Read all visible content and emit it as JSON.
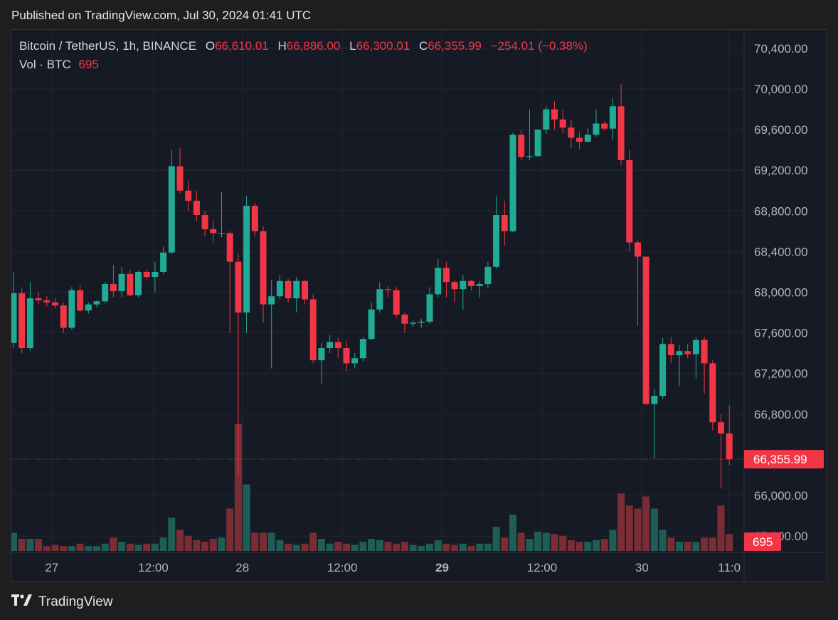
{
  "header": {
    "published": "Published on TradingView.com, Jul 30, 2024 01:41 UTC"
  },
  "legend": {
    "symbol": "Bitcoin / TetherUS, 1h, BINANCE",
    "o_label": "O",
    "o_value": "66,610.01",
    "h_label": "H",
    "h_value": "66,886.00",
    "l_label": "L",
    "l_value": "66,300.01",
    "c_label": "C",
    "c_value": "66,355.99",
    "change": "−254.01 (−0.38%)",
    "vol_label": "Vol · BTC",
    "vol_value": "695"
  },
  "footer": {
    "logo_icon": "tradingview-logo-icon",
    "brand": "TradingView"
  },
  "colors": {
    "up": "#22ab94",
    "down": "#f23645",
    "up_vol": "#1f5e55",
    "down_vol": "#7a2e34",
    "grid": "#232733"
  },
  "chart_data": {
    "type": "candlestick",
    "symbol": "BTCUSDT",
    "interval": "1h",
    "ylim": [
      65700,
      70600
    ],
    "y_ticks": [
      "70,400.00",
      "70,000.00",
      "69,600.00",
      "69,200.00",
      "68,800.00",
      "68,400.00",
      "68,000.00",
      "67,600.00",
      "67,200.00",
      "66,800.00",
      "66,000.00",
      "65,600.00"
    ],
    "x_ticks": [
      "27",
      "12:00",
      "28",
      "12:00",
      "29",
      "12:00",
      "30",
      "11:0"
    ],
    "x_tick_bar_index": [
      4.6,
      16.8,
      27.5,
      39.5,
      51.5,
      63.5,
      75.5,
      86
    ],
    "last_price": "66,355.99",
    "last_volume": "695",
    "candles": [
      {
        "o": 67500,
        "h": 68200,
        "l": 67450,
        "c": 67990,
        "v": 0.3
      },
      {
        "o": 67990,
        "h": 68050,
        "l": 67400,
        "c": 67450,
        "v": 0.2
      },
      {
        "o": 67450,
        "h": 68100,
        "l": 67420,
        "c": 67940,
        "v": 0.2
      },
      {
        "o": 67940,
        "h": 68000,
        "l": 67880,
        "c": 67920,
        "v": 0.2
      },
      {
        "o": 67920,
        "h": 67960,
        "l": 67860,
        "c": 67900,
        "v": 0.08
      },
      {
        "o": 67900,
        "h": 67940,
        "l": 67840,
        "c": 67870,
        "v": 0.1
      },
      {
        "o": 67870,
        "h": 67900,
        "l": 67600,
        "c": 67650,
        "v": 0.08
      },
      {
        "o": 67650,
        "h": 68050,
        "l": 67630,
        "c": 68020,
        "v": 0.08
      },
      {
        "o": 68020,
        "h": 68070,
        "l": 67800,
        "c": 67820,
        "v": 0.12
      },
      {
        "o": 67820,
        "h": 67900,
        "l": 67790,
        "c": 67880,
        "v": 0.08
      },
      {
        "o": 67880,
        "h": 67920,
        "l": 67850,
        "c": 67910,
        "v": 0.08
      },
      {
        "o": 67910,
        "h": 68100,
        "l": 67890,
        "c": 68080,
        "v": 0.12
      },
      {
        "o": 68080,
        "h": 68270,
        "l": 67950,
        "c": 68010,
        "v": 0.22
      },
      {
        "o": 68010,
        "h": 68250,
        "l": 67950,
        "c": 68180,
        "v": 0.15
      },
      {
        "o": 68180,
        "h": 68220,
        "l": 67960,
        "c": 67970,
        "v": 0.12
      },
      {
        "o": 67970,
        "h": 68210,
        "l": 67950,
        "c": 68200,
        "v": 0.1
      },
      {
        "o": 68200,
        "h": 68220,
        "l": 68120,
        "c": 68150,
        "v": 0.12
      },
      {
        "o": 68150,
        "h": 68300,
        "l": 68000,
        "c": 68200,
        "v": 0.12
      },
      {
        "o": 68200,
        "h": 68450,
        "l": 68180,
        "c": 68390,
        "v": 0.22
      },
      {
        "o": 68390,
        "h": 69400,
        "l": 68380,
        "c": 69240,
        "v": 0.55
      },
      {
        "o": 69240,
        "h": 69420,
        "l": 68970,
        "c": 69000,
        "v": 0.35
      },
      {
        "o": 69000,
        "h": 69100,
        "l": 68800,
        "c": 68900,
        "v": 0.25
      },
      {
        "o": 68900,
        "h": 69000,
        "l": 68700,
        "c": 68760,
        "v": 0.18
      },
      {
        "o": 68760,
        "h": 68800,
        "l": 68550,
        "c": 68620,
        "v": 0.15
      },
      {
        "o": 68620,
        "h": 68700,
        "l": 68480,
        "c": 68580,
        "v": 0.2
      },
      {
        "o": 68580,
        "h": 68990,
        "l": 68540,
        "c": 68580,
        "v": 0.22
      },
      {
        "o": 68580,
        "h": 68600,
        "l": 67600,
        "c": 68300,
        "v": 0.7
      },
      {
        "o": 68300,
        "h": 68380,
        "l": 66200,
        "c": 67800,
        "v": 2.1
      },
      {
        "o": 67800,
        "h": 68950,
        "l": 67600,
        "c": 68850,
        "v": 1.1
      },
      {
        "o": 68850,
        "h": 68880,
        "l": 68550,
        "c": 68600,
        "v": 0.3
      },
      {
        "o": 68600,
        "h": 68650,
        "l": 67700,
        "c": 67880,
        "v": 0.3
      },
      {
        "o": 67880,
        "h": 68120,
        "l": 67250,
        "c": 67960,
        "v": 0.3
      },
      {
        "o": 67960,
        "h": 68170,
        "l": 67930,
        "c": 68110,
        "v": 0.18
      },
      {
        "o": 68110,
        "h": 68130,
        "l": 67900,
        "c": 67940,
        "v": 0.12
      },
      {
        "o": 67940,
        "h": 68150,
        "l": 67800,
        "c": 68110,
        "v": 0.1
      },
      {
        "o": 68110,
        "h": 68120,
        "l": 67880,
        "c": 67930,
        "v": 0.12
      },
      {
        "o": 67930,
        "h": 67980,
        "l": 67300,
        "c": 67330,
        "v": 0.3
      },
      {
        "o": 67330,
        "h": 67500,
        "l": 67100,
        "c": 67450,
        "v": 0.2
      },
      {
        "o": 67450,
        "h": 67580,
        "l": 67400,
        "c": 67510,
        "v": 0.12
      },
      {
        "o": 67510,
        "h": 67550,
        "l": 67350,
        "c": 67450,
        "v": 0.15
      },
      {
        "o": 67450,
        "h": 67520,
        "l": 67220,
        "c": 67300,
        "v": 0.12
      },
      {
        "o": 67300,
        "h": 67400,
        "l": 67250,
        "c": 67350,
        "v": 0.1
      },
      {
        "o": 67350,
        "h": 67560,
        "l": 67320,
        "c": 67540,
        "v": 0.15
      },
      {
        "o": 67540,
        "h": 67900,
        "l": 67530,
        "c": 67830,
        "v": 0.2
      },
      {
        "o": 67830,
        "h": 68100,
        "l": 67800,
        "c": 68030,
        "v": 0.18
      },
      {
        "o": 68030,
        "h": 68060,
        "l": 67950,
        "c": 68020,
        "v": 0.15
      },
      {
        "o": 68020,
        "h": 68050,
        "l": 67750,
        "c": 67780,
        "v": 0.12
      },
      {
        "o": 67780,
        "h": 67800,
        "l": 67600,
        "c": 67690,
        "v": 0.15
      },
      {
        "o": 67690,
        "h": 67720,
        "l": 67660,
        "c": 67700,
        "v": 0.1
      },
      {
        "o": 67700,
        "h": 67740,
        "l": 67650,
        "c": 67710,
        "v": 0.08
      },
      {
        "o": 67710,
        "h": 68050,
        "l": 67690,
        "c": 67980,
        "v": 0.12
      },
      {
        "o": 67980,
        "h": 68330,
        "l": 67950,
        "c": 68240,
        "v": 0.18
      },
      {
        "o": 68240,
        "h": 68300,
        "l": 67950,
        "c": 68100,
        "v": 0.12
      },
      {
        "o": 68100,
        "h": 68120,
        "l": 67900,
        "c": 68030,
        "v": 0.1
      },
      {
        "o": 68030,
        "h": 68170,
        "l": 67830,
        "c": 68110,
        "v": 0.12
      },
      {
        "o": 68110,
        "h": 68120,
        "l": 68020,
        "c": 68060,
        "v": 0.08
      },
      {
        "o": 68060,
        "h": 68110,
        "l": 67950,
        "c": 68080,
        "v": 0.12
      },
      {
        "o": 68080,
        "h": 68300,
        "l": 68040,
        "c": 68250,
        "v": 0.12
      },
      {
        "o": 68250,
        "h": 68950,
        "l": 68230,
        "c": 68760,
        "v": 0.4
      },
      {
        "o": 68760,
        "h": 68900,
        "l": 68460,
        "c": 68600,
        "v": 0.22
      },
      {
        "o": 68600,
        "h": 69570,
        "l": 68590,
        "c": 69550,
        "v": 0.6
      },
      {
        "o": 69550,
        "h": 69600,
        "l": 69300,
        "c": 69330,
        "v": 0.3
      },
      {
        "o": 69330,
        "h": 69800,
        "l": 69300,
        "c": 69340,
        "v": 0.2
      },
      {
        "o": 69340,
        "h": 69570,
        "l": 69330,
        "c": 69600,
        "v": 0.32
      },
      {
        "o": 69600,
        "h": 69830,
        "l": 69560,
        "c": 69800,
        "v": 0.3
      },
      {
        "o": 69800,
        "h": 69880,
        "l": 69600,
        "c": 69700,
        "v": 0.28
      },
      {
        "o": 69700,
        "h": 69800,
        "l": 69560,
        "c": 69620,
        "v": 0.25
      },
      {
        "o": 69620,
        "h": 69700,
        "l": 69420,
        "c": 69520,
        "v": 0.18
      },
      {
        "o": 69520,
        "h": 69580,
        "l": 69410,
        "c": 69480,
        "v": 0.15
      },
      {
        "o": 69480,
        "h": 69620,
        "l": 69480,
        "c": 69550,
        "v": 0.15
      },
      {
        "o": 69550,
        "h": 69800,
        "l": 69530,
        "c": 69660,
        "v": 0.18
      },
      {
        "o": 69660,
        "h": 69680,
        "l": 69590,
        "c": 69610,
        "v": 0.2
      },
      {
        "o": 69610,
        "h": 69910,
        "l": 69500,
        "c": 69830,
        "v": 0.35
      },
      {
        "o": 69830,
        "h": 70050,
        "l": 69250,
        "c": 69300,
        "v": 0.95
      },
      {
        "o": 69300,
        "h": 69400,
        "l": 68400,
        "c": 68490,
        "v": 0.75
      },
      {
        "o": 68490,
        "h": 68510,
        "l": 67670,
        "c": 68350,
        "v": 0.7
      },
      {
        "o": 68350,
        "h": 68350,
        "l": 66890,
        "c": 66900,
        "v": 0.9
      },
      {
        "o": 66900,
        "h": 67050,
        "l": 66360,
        "c": 66980,
        "v": 0.7
      },
      {
        "o": 66980,
        "h": 67550,
        "l": 66950,
        "c": 67490,
        "v": 0.35
      },
      {
        "o": 67490,
        "h": 67560,
        "l": 67300,
        "c": 67380,
        "v": 0.22
      },
      {
        "o": 67380,
        "h": 67480,
        "l": 67080,
        "c": 67420,
        "v": 0.15
      },
      {
        "o": 67420,
        "h": 67490,
        "l": 67350,
        "c": 67390,
        "v": 0.15
      },
      {
        "o": 67390,
        "h": 67560,
        "l": 67150,
        "c": 67530,
        "v": 0.15
      },
      {
        "o": 67530,
        "h": 67560,
        "l": 67000,
        "c": 67300,
        "v": 0.22
      },
      {
        "o": 67300,
        "h": 67330,
        "l": 66640,
        "c": 66720,
        "v": 0.22
      },
      {
        "o": 66720,
        "h": 66800,
        "l": 66070,
        "c": 66610,
        "v": 0.75
      },
      {
        "o": 66610,
        "h": 66886,
        "l": 66300.01,
        "c": 66355.99,
        "v": 0.28
      }
    ]
  }
}
